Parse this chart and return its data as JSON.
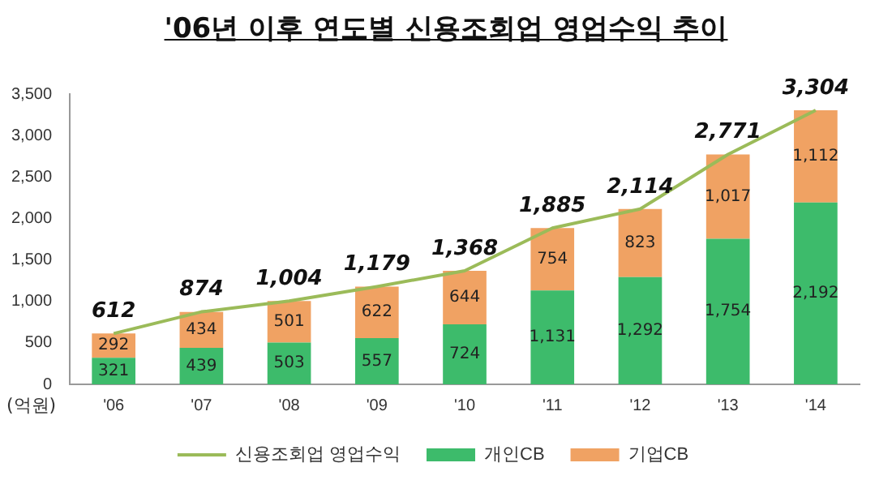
{
  "chart_data": {
    "type": "bar",
    "title": "'06년 이후 연도별 신용조회업 영업수익 추이",
    "ylabel": "(억원)",
    "stacked": true,
    "categories": [
      "'06",
      "'07",
      "'08",
      "'09",
      "'10",
      "'11",
      "'12",
      "'13",
      "'14"
    ],
    "series": [
      {
        "name": "개인CB",
        "color": "#3dbb6b",
        "values": [
          321,
          439,
          503,
          557,
          724,
          1131,
          1292,
          1754,
          2192
        ],
        "value_labels": [
          "321",
          "439",
          "503",
          "557",
          "724",
          "1,131",
          "1,292",
          "1,754",
          "2,192"
        ]
      },
      {
        "name": "기업CB",
        "color": "#f0a263",
        "values": [
          292,
          434,
          501,
          622,
          644,
          754,
          823,
          1017,
          1112
        ],
        "value_labels": [
          "292",
          "434",
          "501",
          "622",
          "644",
          "754",
          "823",
          "1,017",
          "1,112"
        ]
      },
      {
        "name": "신용조회업 영업수익",
        "type": "line",
        "color": "#9bbb59",
        "marker": "none",
        "values": [
          612,
          874,
          1004,
          1179,
          1368,
          1885,
          2114,
          2771,
          3304
        ],
        "value_labels": [
          "612",
          "874",
          "1,004",
          "1,179",
          "1,368",
          "1,885",
          "2,114",
          "2,771",
          "3,304"
        ]
      }
    ],
    "ylim": [
      0,
      3500
    ],
    "yticks": [
      0,
      {
        "value": 500,
        "label": "500"
      },
      {
        "value": 1000,
        "label": "1,000"
      },
      {
        "value": 1500,
        "label": "1,500"
      },
      {
        "value": 2000,
        "label": "2,000"
      },
      {
        "value": 2500,
        "label": "2,500"
      },
      {
        "value": 3000,
        "label": "3,000"
      },
      {
        "value": 3500,
        "label": "3,500"
      }
    ],
    "grid": false,
    "legend": "bottom"
  }
}
